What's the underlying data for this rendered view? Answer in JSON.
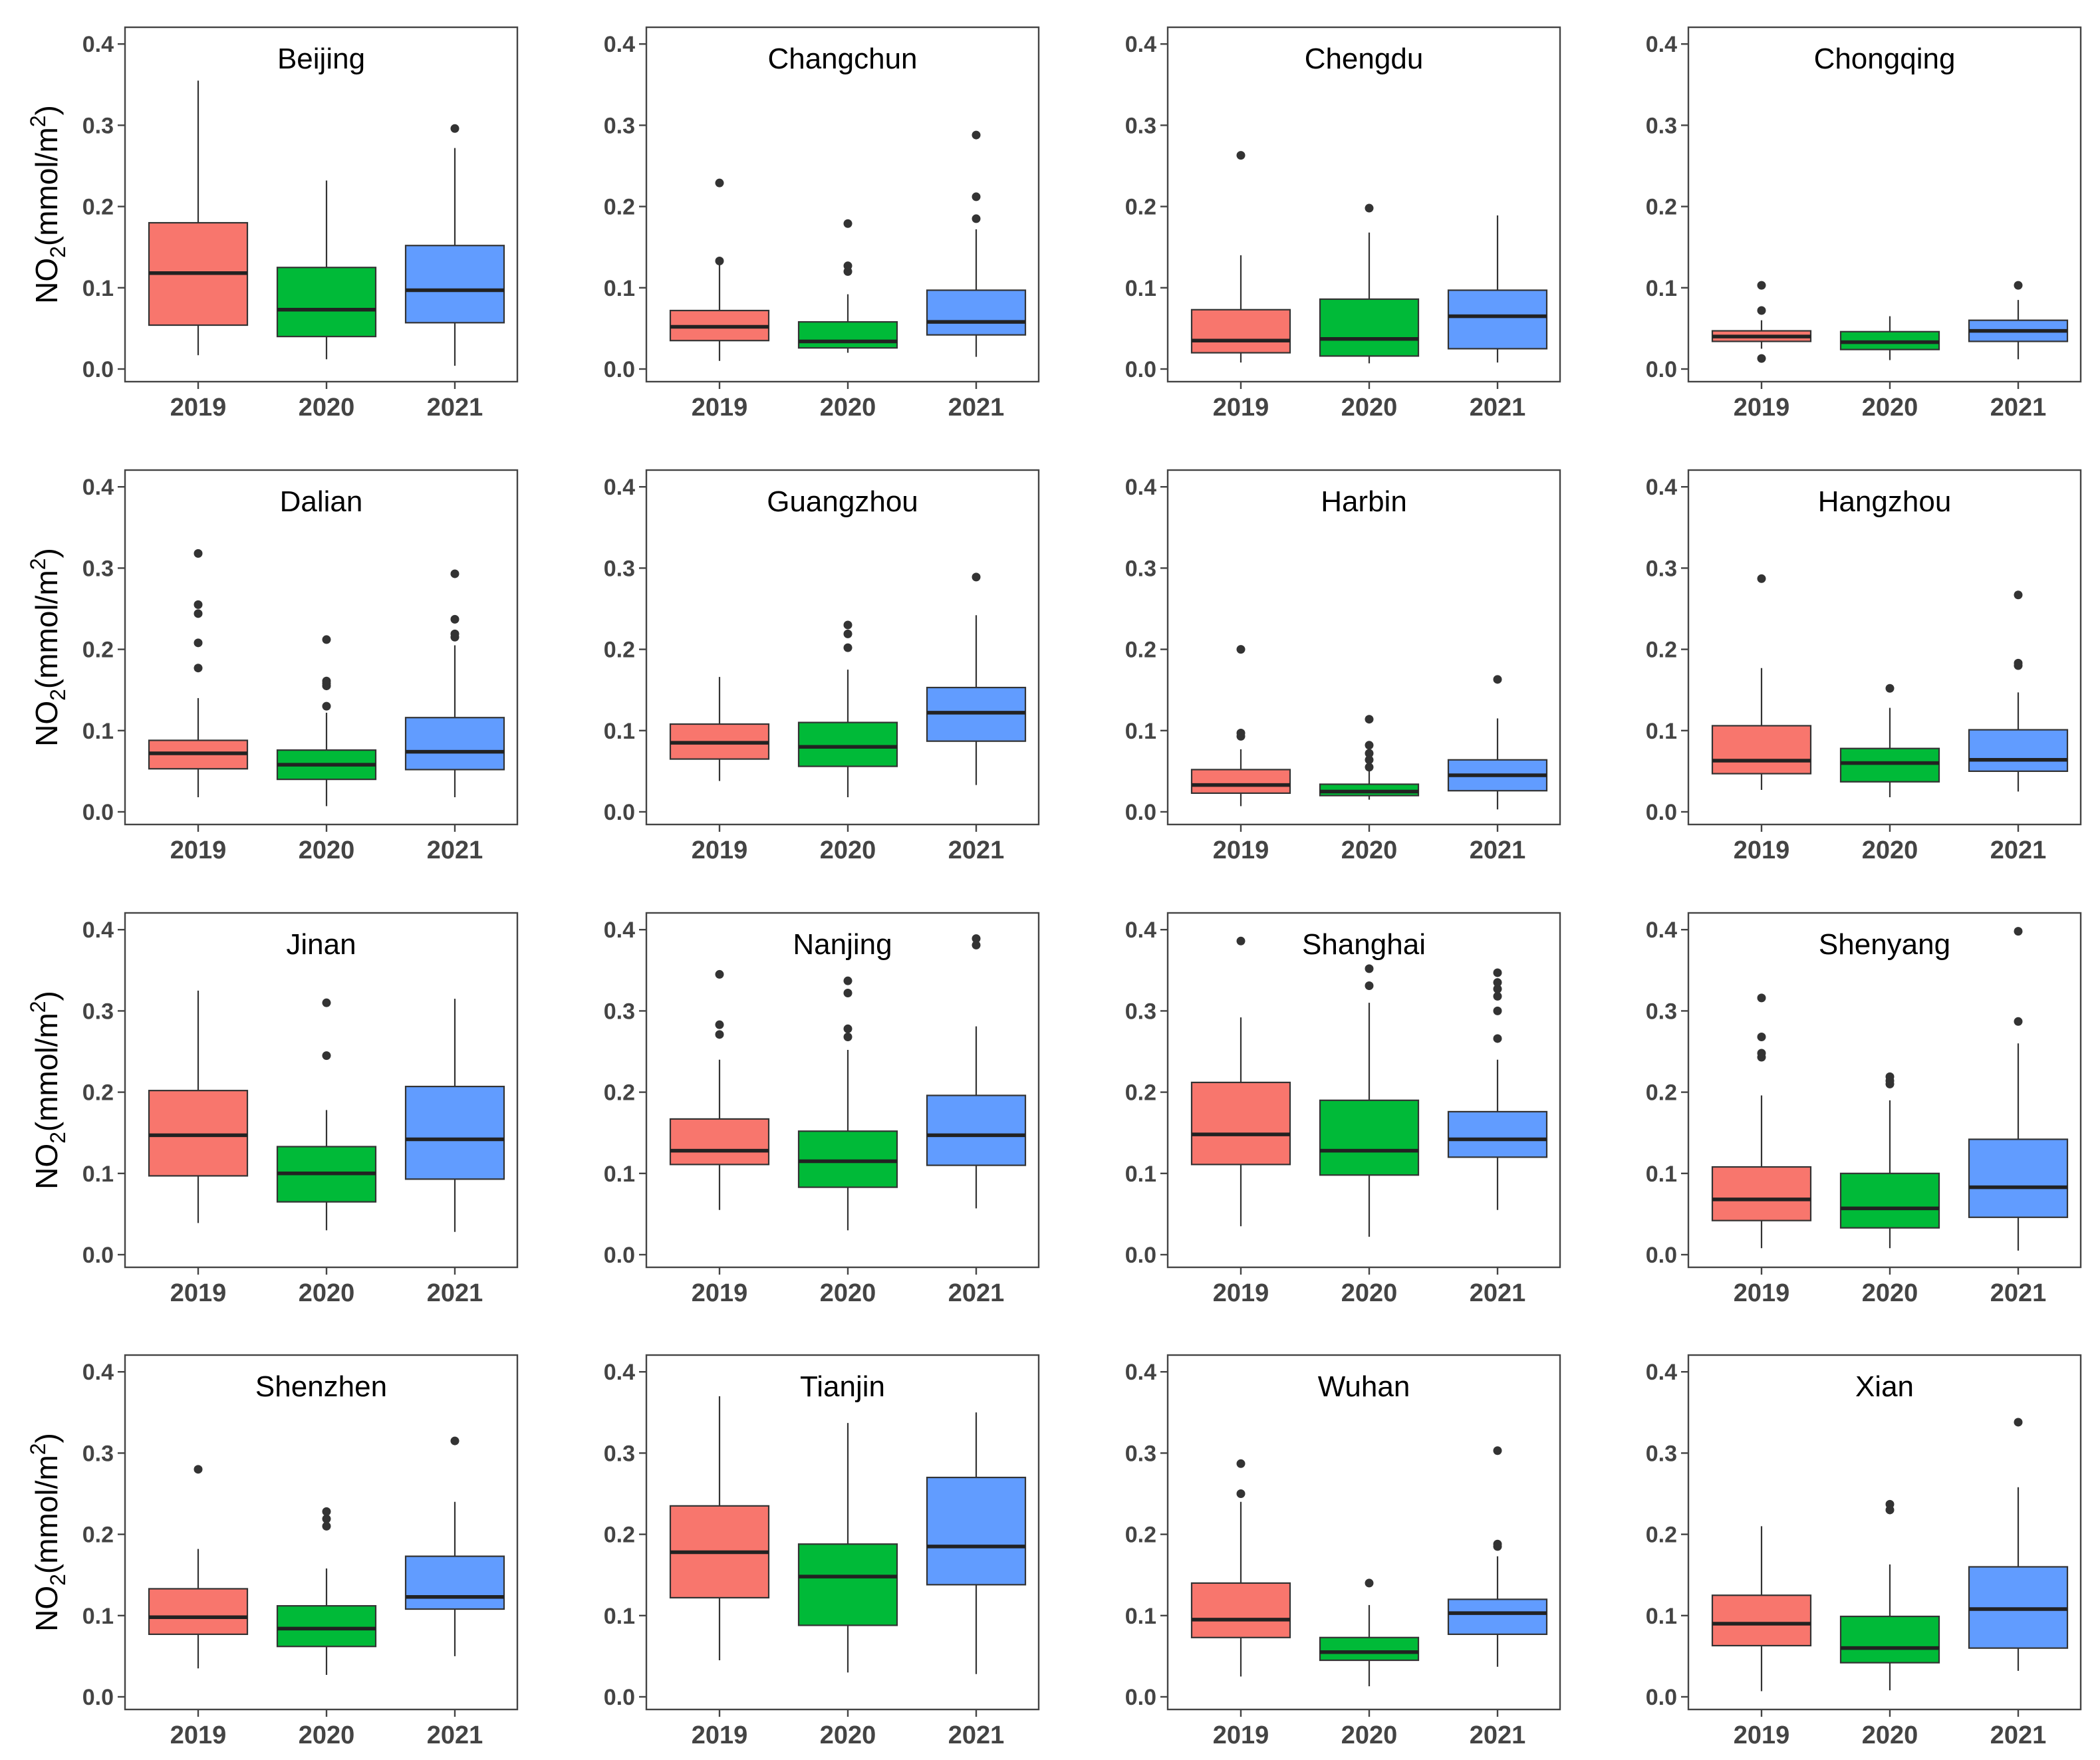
{
  "chart_data": {
    "type": "boxplot",
    "layout": "4x4 facet grid",
    "ylabel": "NO2(mmol/m2)",
    "ylabel_parts": {
      "base": "NO",
      "sub": "2",
      "unit": "(mmol/m",
      "sup": "2",
      "close": ")"
    },
    "ylim": [
      0,
      0.4
    ],
    "yticks": [
      "0.0",
      "0.1",
      "0.2",
      "0.3",
      "0.4"
    ],
    "categories": [
      "2019",
      "2020",
      "2021"
    ],
    "colors": {
      "2019": "#F8766D",
      "2020": "#00BA38",
      "2021": "#619CFF"
    },
    "grid": false,
    "legend": "none",
    "panels": [
      {
        "title": "Beijing",
        "boxes": [
          {
            "category": "2019",
            "min": 0.017,
            "q1": 0.054,
            "median": 0.118,
            "q3": 0.18,
            "max": 0.355,
            "outliers": []
          },
          {
            "category": "2020",
            "min": 0.012,
            "q1": 0.04,
            "median": 0.073,
            "q3": 0.125,
            "max": 0.232,
            "outliers": []
          },
          {
            "category": "2021",
            "min": 0.004,
            "q1": 0.057,
            "median": 0.097,
            "q3": 0.152,
            "max": 0.272,
            "outliers": [
              0.296
            ]
          }
        ]
      },
      {
        "title": "Changchun",
        "boxes": [
          {
            "category": "2019",
            "min": 0.01,
            "q1": 0.035,
            "median": 0.052,
            "q3": 0.072,
            "max": 0.133,
            "outliers": [
              0.133,
              0.229
            ]
          },
          {
            "category": "2020",
            "min": 0.02,
            "q1": 0.026,
            "median": 0.034,
            "q3": 0.058,
            "max": 0.092,
            "outliers": [
              0.12,
              0.127,
              0.179
            ]
          },
          {
            "category": "2021",
            "min": 0.015,
            "q1": 0.042,
            "median": 0.058,
            "q3": 0.097,
            "max": 0.172,
            "outliers": [
              0.185,
              0.212,
              0.288
            ]
          }
        ]
      },
      {
        "title": "Chengdu",
        "boxes": [
          {
            "category": "2019",
            "min": 0.008,
            "q1": 0.02,
            "median": 0.035,
            "q3": 0.073,
            "max": 0.14,
            "outliers": [
              0.263
            ]
          },
          {
            "category": "2020",
            "min": 0.007,
            "q1": 0.016,
            "median": 0.037,
            "q3": 0.086,
            "max": 0.168,
            "outliers": [
              0.198
            ]
          },
          {
            "category": "2021",
            "min": 0.008,
            "q1": 0.025,
            "median": 0.065,
            "q3": 0.097,
            "max": 0.189,
            "outliers": []
          }
        ]
      },
      {
        "title": "Chongqing",
        "boxes": [
          {
            "category": "2019",
            "min": 0.025,
            "q1": 0.034,
            "median": 0.04,
            "q3": 0.047,
            "max": 0.06,
            "outliers": [
              0.013,
              0.072,
              0.103
            ]
          },
          {
            "category": "2020",
            "min": 0.011,
            "q1": 0.024,
            "median": 0.033,
            "q3": 0.046,
            "max": 0.065,
            "outliers": []
          },
          {
            "category": "2021",
            "min": 0.012,
            "q1": 0.034,
            "median": 0.047,
            "q3": 0.06,
            "max": 0.085,
            "outliers": [
              0.103
            ]
          }
        ]
      },
      {
        "title": "Dalian",
        "boxes": [
          {
            "category": "2019",
            "min": 0.018,
            "q1": 0.053,
            "median": 0.072,
            "q3": 0.088,
            "max": 0.14,
            "outliers": [
              0.177,
              0.208,
              0.244,
              0.255,
              0.318
            ]
          },
          {
            "category": "2020",
            "min": 0.007,
            "q1": 0.04,
            "median": 0.058,
            "q3": 0.076,
            "max": 0.122,
            "outliers": [
              0.13,
              0.155,
              0.158,
              0.161,
              0.212
            ]
          },
          {
            "category": "2021",
            "min": 0.018,
            "q1": 0.052,
            "median": 0.074,
            "q3": 0.116,
            "max": 0.205,
            "outliers": [
              0.215,
              0.219,
              0.237,
              0.293
            ]
          }
        ]
      },
      {
        "title": "Guangzhou",
        "boxes": [
          {
            "category": "2019",
            "min": 0.038,
            "q1": 0.065,
            "median": 0.085,
            "q3": 0.108,
            "max": 0.166,
            "outliers": []
          },
          {
            "category": "2020",
            "min": 0.018,
            "q1": 0.056,
            "median": 0.08,
            "q3": 0.11,
            "max": 0.175,
            "outliers": [
              0.202,
              0.219,
              0.23
            ]
          },
          {
            "category": "2021",
            "min": 0.033,
            "q1": 0.087,
            "median": 0.122,
            "q3": 0.153,
            "max": 0.242,
            "outliers": [
              0.289
            ]
          }
        ]
      },
      {
        "title": "Harbin",
        "boxes": [
          {
            "category": "2019",
            "min": 0.007,
            "q1": 0.023,
            "median": 0.033,
            "q3": 0.052,
            "max": 0.077,
            "outliers": [
              0.093,
              0.097,
              0.2
            ]
          },
          {
            "category": "2020",
            "min": 0.015,
            "q1": 0.02,
            "median": 0.025,
            "q3": 0.034,
            "max": 0.05,
            "outliers": [
              0.055,
              0.064,
              0.072,
              0.082,
              0.114
            ]
          },
          {
            "category": "2021",
            "min": 0.003,
            "q1": 0.026,
            "median": 0.045,
            "q3": 0.064,
            "max": 0.115,
            "outliers": [
              0.163
            ]
          }
        ]
      },
      {
        "title": "Hangzhou",
        "boxes": [
          {
            "category": "2019",
            "min": 0.027,
            "q1": 0.047,
            "median": 0.063,
            "q3": 0.106,
            "max": 0.177,
            "outliers": [
              0.287
            ]
          },
          {
            "category": "2020",
            "min": 0.018,
            "q1": 0.037,
            "median": 0.06,
            "q3": 0.078,
            "max": 0.128,
            "outliers": [
              0.152
            ]
          },
          {
            "category": "2021",
            "min": 0.025,
            "q1": 0.05,
            "median": 0.064,
            "q3": 0.101,
            "max": 0.147,
            "outliers": [
              0.18,
              0.183,
              0.267
            ]
          }
        ]
      },
      {
        "title": "Jinan",
        "boxes": [
          {
            "category": "2019",
            "min": 0.039,
            "q1": 0.097,
            "median": 0.147,
            "q3": 0.202,
            "max": 0.325,
            "outliers": []
          },
          {
            "category": "2020",
            "min": 0.03,
            "q1": 0.065,
            "median": 0.1,
            "q3": 0.133,
            "max": 0.178,
            "outliers": [
              0.245,
              0.31
            ]
          },
          {
            "category": "2021",
            "min": 0.028,
            "q1": 0.093,
            "median": 0.142,
            "q3": 0.207,
            "max": 0.315,
            "outliers": []
          }
        ]
      },
      {
        "title": "Nanjing",
        "boxes": [
          {
            "category": "2019",
            "min": 0.055,
            "q1": 0.111,
            "median": 0.128,
            "q3": 0.167,
            "max": 0.24,
            "outliers": [
              0.271,
              0.283,
              0.345
            ]
          },
          {
            "category": "2020",
            "min": 0.03,
            "q1": 0.083,
            "median": 0.115,
            "q3": 0.152,
            "max": 0.252,
            "outliers": [
              0.268,
              0.278,
              0.322,
              0.337
            ]
          },
          {
            "category": "2021",
            "min": 0.057,
            "q1": 0.11,
            "median": 0.147,
            "q3": 0.196,
            "max": 0.281,
            "outliers": [
              0.381,
              0.389
            ]
          }
        ]
      },
      {
        "title": "Shanghai",
        "boxes": [
          {
            "category": "2019",
            "min": 0.035,
            "q1": 0.111,
            "median": 0.148,
            "q3": 0.212,
            "max": 0.292,
            "outliers": [
              0.386
            ]
          },
          {
            "category": "2020",
            "min": 0.022,
            "q1": 0.098,
            "median": 0.128,
            "q3": 0.19,
            "max": 0.31,
            "outliers": [
              0.331,
              0.352
            ]
          },
          {
            "category": "2021",
            "min": 0.055,
            "q1": 0.12,
            "median": 0.142,
            "q3": 0.176,
            "max": 0.24,
            "outliers": [
              0.266,
              0.3,
              0.318,
              0.327,
              0.335,
              0.347
            ]
          }
        ]
      },
      {
        "title": "Shenyang",
        "boxes": [
          {
            "category": "2019",
            "min": 0.008,
            "q1": 0.042,
            "median": 0.068,
            "q3": 0.108,
            "max": 0.196,
            "outliers": [
              0.243,
              0.248,
              0.268,
              0.316
            ]
          },
          {
            "category": "2020",
            "min": 0.008,
            "q1": 0.033,
            "median": 0.057,
            "q3": 0.1,
            "max": 0.19,
            "outliers": [
              0.21,
              0.214,
              0.219
            ]
          },
          {
            "category": "2021",
            "min": 0.005,
            "q1": 0.046,
            "median": 0.083,
            "q3": 0.142,
            "max": 0.26,
            "outliers": [
              0.287,
              0.398
            ]
          }
        ]
      },
      {
        "title": "Shenzhen",
        "boxes": [
          {
            "category": "2019",
            "min": 0.035,
            "q1": 0.077,
            "median": 0.098,
            "q3": 0.133,
            "max": 0.182,
            "outliers": [
              0.28
            ]
          },
          {
            "category": "2020",
            "min": 0.027,
            "q1": 0.062,
            "median": 0.084,
            "q3": 0.112,
            "max": 0.158,
            "outliers": [
              0.21,
              0.219,
              0.228
            ]
          },
          {
            "category": "2021",
            "min": 0.05,
            "q1": 0.108,
            "median": 0.123,
            "q3": 0.173,
            "max": 0.24,
            "outliers": [
              0.315
            ]
          }
        ]
      },
      {
        "title": "Tianjin",
        "boxes": [
          {
            "category": "2019",
            "min": 0.045,
            "q1": 0.122,
            "median": 0.178,
            "q3": 0.235,
            "max": 0.37,
            "outliers": []
          },
          {
            "category": "2020",
            "min": 0.03,
            "q1": 0.088,
            "median": 0.148,
            "q3": 0.188,
            "max": 0.337,
            "outliers": []
          },
          {
            "category": "2021",
            "min": 0.028,
            "q1": 0.138,
            "median": 0.185,
            "q3": 0.27,
            "max": 0.35,
            "outliers": []
          }
        ]
      },
      {
        "title": "Wuhan",
        "boxes": [
          {
            "category": "2019",
            "min": 0.025,
            "q1": 0.073,
            "median": 0.095,
            "q3": 0.14,
            "max": 0.24,
            "outliers": [
              0.25,
              0.287
            ]
          },
          {
            "category": "2020",
            "min": 0.013,
            "q1": 0.045,
            "median": 0.055,
            "q3": 0.073,
            "max": 0.113,
            "outliers": [
              0.14
            ]
          },
          {
            "category": "2021",
            "min": 0.037,
            "q1": 0.077,
            "median": 0.103,
            "q3": 0.12,
            "max": 0.173,
            "outliers": [
              0.185,
              0.188,
              0.303
            ]
          }
        ]
      },
      {
        "title": "Xian",
        "boxes": [
          {
            "category": "2019",
            "min": 0.007,
            "q1": 0.063,
            "median": 0.09,
            "q3": 0.125,
            "max": 0.21,
            "outliers": []
          },
          {
            "category": "2020",
            "min": 0.008,
            "q1": 0.042,
            "median": 0.06,
            "q3": 0.099,
            "max": 0.163,
            "outliers": [
              0.23,
              0.237
            ]
          },
          {
            "category": "2021",
            "min": 0.032,
            "q1": 0.06,
            "median": 0.108,
            "q3": 0.16,
            "max": 0.258,
            "outliers": [
              0.338
            ]
          }
        ]
      }
    ]
  }
}
